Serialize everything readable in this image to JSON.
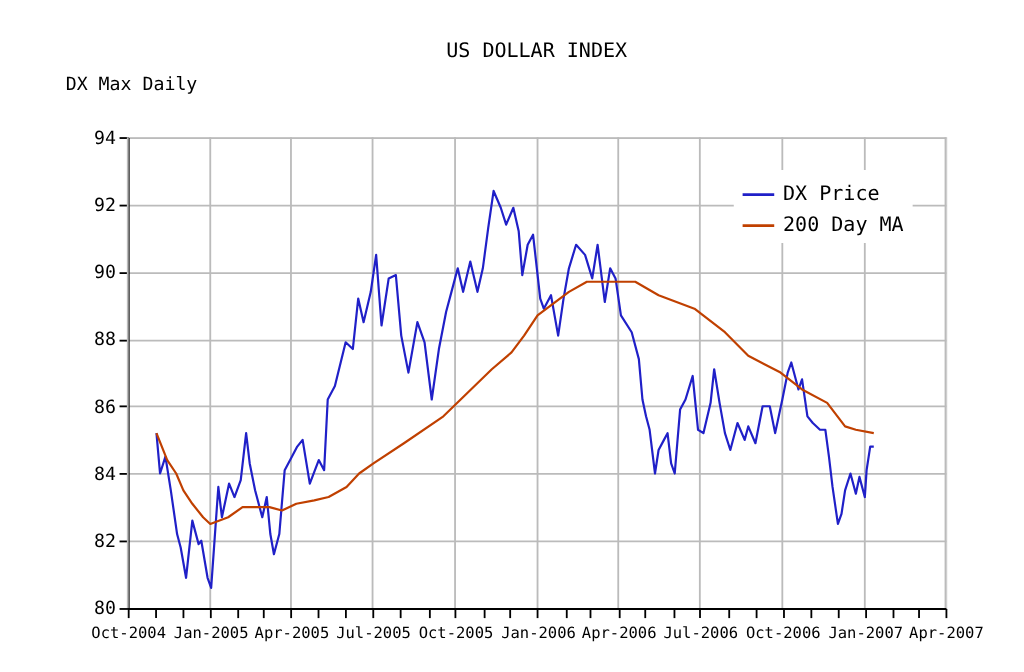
{
  "chart_data": {
    "type": "line",
    "title": "US DOLLAR INDEX",
    "annotations": [
      "DX Max Daily"
    ],
    "xlim": [
      "2004-10-01",
      "2007-04-01"
    ],
    "xticks": [
      {
        "value": "2004-10-01",
        "label": "Oct-2004"
      },
      {
        "value": "2004-11-01",
        "label": null
      },
      {
        "value": "2004-12-01",
        "label": null
      },
      {
        "value": "2005-01-01",
        "label": "Jan-2005"
      },
      {
        "value": "2005-02-01",
        "label": null
      },
      {
        "value": "2005-03-01",
        "label": null
      },
      {
        "value": "2005-04-01",
        "label": "Apr-2005"
      },
      {
        "value": "2005-05-01",
        "label": null
      },
      {
        "value": "2005-06-01",
        "label": null
      },
      {
        "value": "2005-07-01",
        "label": "Jul-2005"
      },
      {
        "value": "2005-08-01",
        "label": null
      },
      {
        "value": "2005-09-01",
        "label": null
      },
      {
        "value": "2005-10-01",
        "label": "Oct-2005"
      },
      {
        "value": "2005-11-01",
        "label": null
      },
      {
        "value": "2005-12-01",
        "label": null
      },
      {
        "value": "2006-01-01",
        "label": "Jan-2006"
      },
      {
        "value": "2006-02-01",
        "label": null
      },
      {
        "value": "2006-03-01",
        "label": null
      },
      {
        "value": "2006-04-01",
        "label": "Apr-2006"
      },
      {
        "value": "2006-05-01",
        "label": null
      },
      {
        "value": "2006-06-01",
        "label": null
      },
      {
        "value": "2006-07-01",
        "label": "Jul-2006"
      },
      {
        "value": "2006-08-01",
        "label": null
      },
      {
        "value": "2006-09-01",
        "label": null
      },
      {
        "value": "2006-10-01",
        "label": "Oct-2006"
      },
      {
        "value": "2006-11-01",
        "label": null
      },
      {
        "value": "2006-12-01",
        "label": null
      },
      {
        "value": "2007-01-01",
        "label": "Jan-2007"
      },
      {
        "value": "2007-02-01",
        "label": null
      },
      {
        "value": "2007-03-01",
        "label": null
      },
      {
        "value": "2007-04-01",
        "label": "Apr-2007"
      }
    ],
    "ylim": [
      80,
      94
    ],
    "yticks": [
      80,
      82,
      84,
      86,
      88,
      90,
      92,
      94
    ],
    "grid": true,
    "legend": "top right",
    "line_style": "solid",
    "marker": "none",
    "series": [
      {
        "name": "DX Price",
        "color": "#2020c8",
        "x": [
          "2004-11-02",
          "2004-11-06",
          "2004-11-12",
          "2004-11-18",
          "2004-11-25",
          "2004-11-29",
          "2004-12-05",
          "2004-12-12",
          "2004-12-19",
          "2004-12-22",
          "2004-12-29",
          "2005-01-02",
          "2005-01-06",
          "2005-01-10",
          "2005-01-14",
          "2005-01-22",
          "2005-01-28",
          "2005-02-04",
          "2005-02-10",
          "2005-02-14",
          "2005-02-20",
          "2005-02-28",
          "2005-03-05",
          "2005-03-09",
          "2005-03-13",
          "2005-03-19",
          "2005-03-25",
          "2005-04-02",
          "2005-04-08",
          "2005-04-14",
          "2005-04-22",
          "2005-05-02",
          "2005-05-08",
          "2005-05-12",
          "2005-05-20",
          "2005-06-01",
          "2005-06-09",
          "2005-06-15",
          "2005-06-21",
          "2005-06-29",
          "2005-07-05",
          "2005-07-11",
          "2005-07-19",
          "2005-07-27",
          "2005-08-02",
          "2005-08-10",
          "2005-08-20",
          "2005-08-28",
          "2005-09-05",
          "2005-09-13",
          "2005-09-21",
          "2005-09-27",
          "2005-10-04",
          "2005-10-10",
          "2005-10-18",
          "2005-10-26",
          "2005-11-01",
          "2005-11-07",
          "2005-11-13",
          "2005-11-21",
          "2005-11-27",
          "2005-12-05",
          "2005-12-11",
          "2005-12-15",
          "2005-12-21",
          "2005-12-27",
          "2006-01-04",
          "2006-01-08",
          "2006-01-16",
          "2006-01-24",
          "2006-01-30",
          "2006-02-05",
          "2006-02-13",
          "2006-02-23",
          "2006-03-03",
          "2006-03-09",
          "2006-03-17",
          "2006-03-23",
          "2006-03-29",
          "2006-04-04",
          "2006-04-16",
          "2006-04-24",
          "2006-04-28",
          "2006-05-02",
          "2006-05-06",
          "2006-05-12",
          "2006-05-16",
          "2006-05-22",
          "2006-05-26",
          "2006-05-30",
          "2006-06-03",
          "2006-06-09",
          "2006-06-15",
          "2006-06-23",
          "2006-06-29",
          "2006-07-05",
          "2006-07-13",
          "2006-07-17",
          "2006-07-23",
          "2006-07-29",
          "2006-08-04",
          "2006-08-12",
          "2006-08-20",
          "2006-08-24",
          "2006-09-01",
          "2006-09-09",
          "2006-09-17",
          "2006-09-23",
          "2006-10-01",
          "2006-10-07",
          "2006-10-11",
          "2006-10-19",
          "2006-10-23",
          "2006-10-29",
          "2006-11-04",
          "2006-11-12",
          "2006-11-18",
          "2006-11-22",
          "2006-11-26",
          "2006-12-02",
          "2006-12-06",
          "2006-12-10",
          "2006-12-16",
          "2006-12-22",
          "2006-12-26",
          "2007-01-01",
          "2007-01-03",
          "2007-01-07",
          "2007-01-11"
        ],
        "values": [
          85.2,
          84.0,
          84.5,
          83.5,
          82.2,
          81.8,
          80.9,
          82.6,
          81.9,
          82.0,
          80.9,
          80.6,
          82.1,
          83.6,
          82.7,
          83.7,
          83.3,
          83.8,
          85.2,
          84.3,
          83.5,
          82.7,
          83.3,
          82.2,
          81.6,
          82.2,
          84.1,
          84.5,
          84.8,
          85.0,
          83.7,
          84.4,
          84.1,
          86.2,
          86.6,
          87.9,
          87.7,
          89.2,
          88.5,
          89.4,
          90.5,
          88.4,
          89.8,
          89.9,
          88.1,
          87.0,
          88.5,
          87.9,
          86.2,
          87.7,
          88.8,
          89.4,
          90.1,
          89.4,
          90.3,
          89.4,
          90.1,
          91.3,
          92.4,
          91.9,
          91.4,
          91.9,
          91.2,
          89.9,
          90.8,
          91.1,
          89.2,
          88.9,
          89.3,
          88.1,
          89.2,
          90.1,
          90.8,
          90.5,
          89.8,
          90.8,
          89.1,
          90.1,
          89.8,
          88.7,
          88.2,
          87.4,
          86.2,
          85.7,
          85.3,
          84.0,
          84.7,
          85.0,
          85.2,
          84.3,
          84.0,
          85.9,
          86.2,
          86.9,
          85.3,
          85.2,
          86.1,
          87.1,
          86.1,
          85.2,
          84.7,
          85.5,
          85.0,
          85.4,
          84.9,
          86.0,
          86.0,
          85.2,
          86.2,
          87.0,
          87.3,
          86.5,
          86.8,
          85.7,
          85.5,
          85.3,
          85.3,
          84.5,
          83.6,
          82.5,
          82.8,
          83.5,
          84.0,
          83.4,
          83.9,
          83.3,
          84.1,
          84.8,
          84.8
        ]
      },
      {
        "name": "200 Day MA",
        "color": "#c04000",
        "x": [
          "2004-11-02",
          "2004-11-14",
          "2004-11-24",
          "2004-12-02",
          "2004-12-12",
          "2004-12-24",
          "2005-01-01",
          "2005-01-21",
          "2005-02-06",
          "2005-03-08",
          "2005-03-22",
          "2005-04-07",
          "2005-04-27",
          "2005-05-13",
          "2005-06-02",
          "2005-06-16",
          "2005-07-02",
          "2005-08-05",
          "2005-09-18",
          "2005-11-11",
          "2005-12-03",
          "2005-12-17",
          "2006-01-01",
          "2006-02-05",
          "2006-02-25",
          "2006-04-20",
          "2006-05-16",
          "2006-06-25",
          "2006-07-29",
          "2006-08-24",
          "2006-09-29",
          "2006-10-23",
          "2006-11-20",
          "2006-12-10",
          "2006-12-22",
          "2007-01-11"
        ],
        "values": [
          85.2,
          84.4,
          84.0,
          83.5,
          83.1,
          82.7,
          82.5,
          82.7,
          83.0,
          83.0,
          82.9,
          83.1,
          83.2,
          83.3,
          83.6,
          84.0,
          84.3,
          84.9,
          85.7,
          87.1,
          87.6,
          88.1,
          88.7,
          89.4,
          89.7,
          89.7,
          89.3,
          88.9,
          88.2,
          87.5,
          87.0,
          86.5,
          86.1,
          85.4,
          85.3,
          85.2
        ]
      }
    ]
  }
}
